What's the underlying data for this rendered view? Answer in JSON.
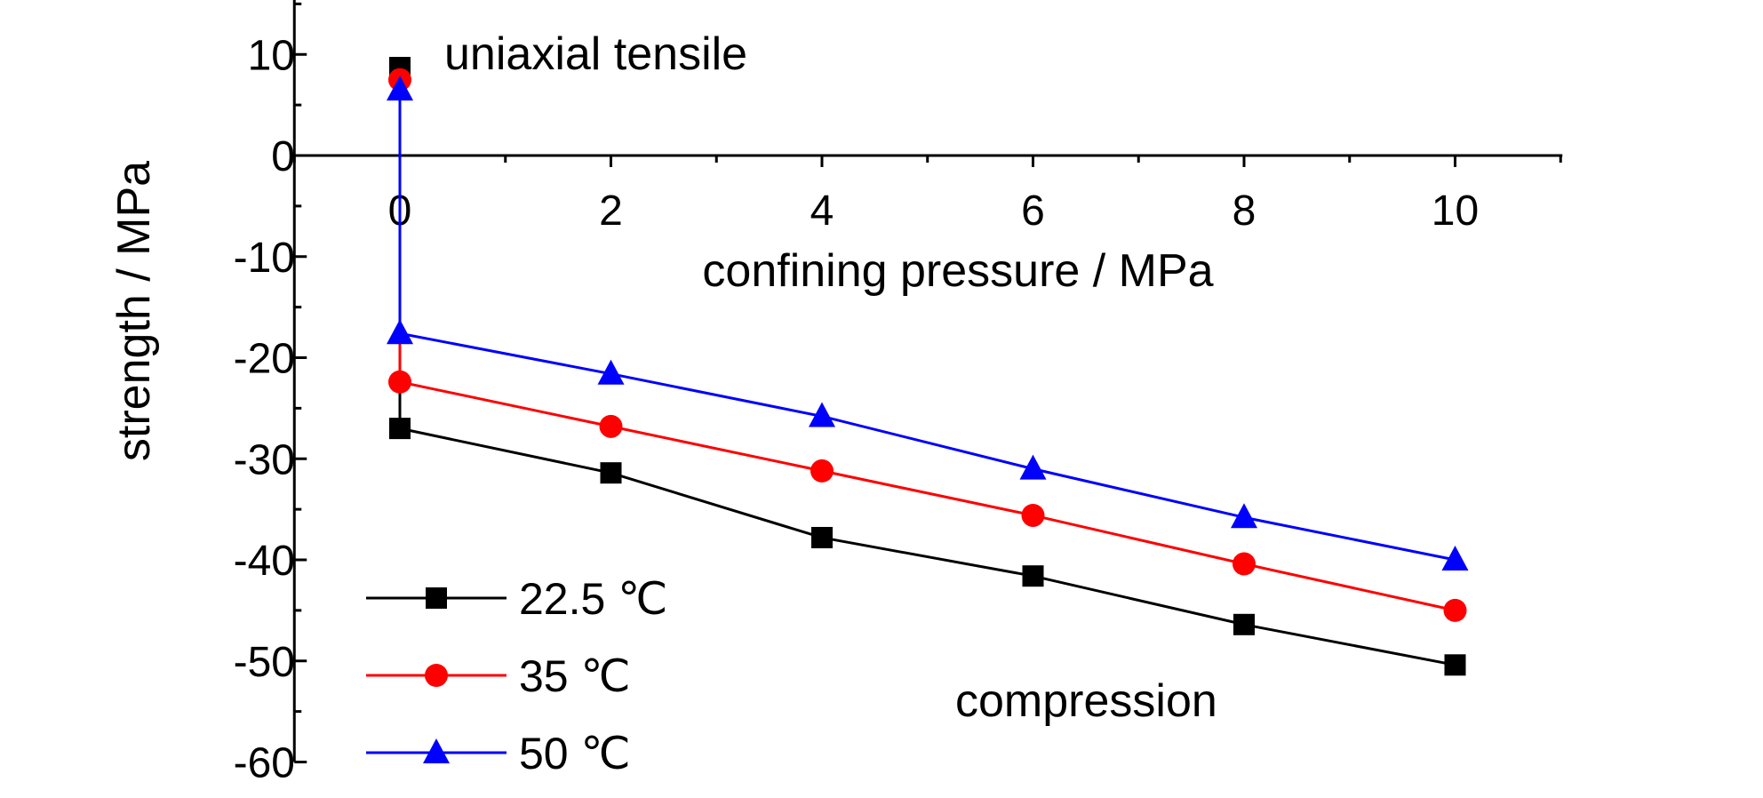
{
  "chart_data": {
    "type": "line",
    "xlabel": "confining pressure / MPa",
    "ylabel": "strength / MPa",
    "xlim": [
      -1,
      11
    ],
    "ylim": [
      -60,
      15
    ],
    "x_ticks": [
      "0",
      "2",
      "4",
      "6",
      "8",
      "10"
    ],
    "y_ticks": [
      "10",
      "0",
      "-10",
      "-20",
      "-30",
      "-40",
      "-50",
      "-60"
    ],
    "annotations": [
      "uniaxial tensile",
      "compression"
    ],
    "legend_position": "bottom-left",
    "series": [
      {
        "name": "22.5 ℃",
        "color": "#000000",
        "marker": "square",
        "tensile": {
          "x": 0,
          "y": 8.7
        },
        "x": [
          0,
          2,
          4,
          6,
          8,
          10
        ],
        "y": [
          -27.0,
          -31.4,
          -37.8,
          -41.6,
          -46.4,
          -50.4
        ]
      },
      {
        "name": "35 ℃",
        "color": "#ff0000",
        "marker": "circle",
        "tensile": {
          "x": 0,
          "y": 7.5
        },
        "x": [
          0,
          2,
          4,
          6,
          8,
          10
        ],
        "y": [
          -22.4,
          -26.8,
          -31.2,
          -35.6,
          -40.4,
          -45.0
        ]
      },
      {
        "name": "50 ℃",
        "color": "#0000ff",
        "marker": "triangle",
        "tensile": {
          "x": 0,
          "y": 6.5
        },
        "x": [
          0,
          2,
          4,
          6,
          8,
          10
        ],
        "y": [
          -17.6,
          -21.6,
          -25.8,
          -31.0,
          -35.8,
          -40.0
        ]
      }
    ]
  }
}
